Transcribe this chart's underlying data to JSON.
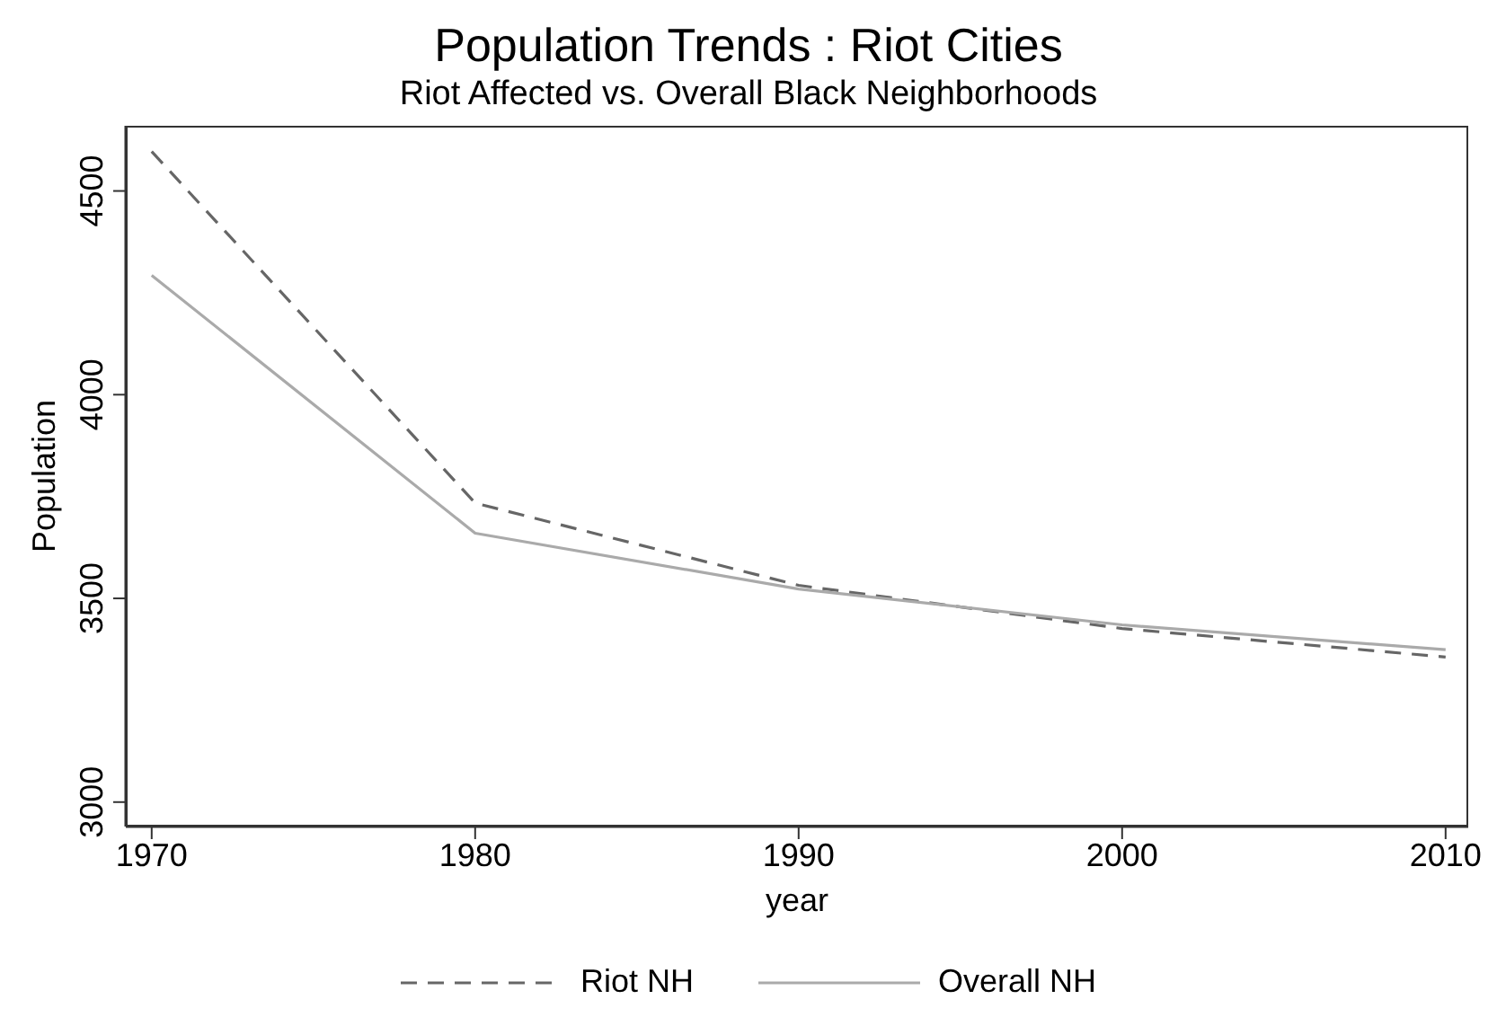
{
  "chart_data": {
    "type": "line",
    "title": "Population Trends : Riot Cities",
    "subtitle": "Riot Affected vs. Overall Black Neighborhoods",
    "xlabel": "year",
    "ylabel": "Population",
    "x": [
      1970,
      1980,
      1990,
      2000,
      2010
    ],
    "series": [
      {
        "name": "Riot NH",
        "color": "#666666",
        "line_style": "dashed",
        "values": [
          4597,
          3734,
          3532,
          3426,
          3356
        ]
      },
      {
        "name": "Overall NH",
        "color": "#aaaaaa",
        "line_style": "solid",
        "values": [
          4293,
          3660,
          3523,
          3435,
          3374
        ]
      }
    ],
    "xlim": [
      1969.2,
      2010.7
    ],
    "xticks": [
      1970,
      1980,
      1990,
      2000,
      2010
    ],
    "ylim": [
      2940,
      4660
    ],
    "yticks": [
      3000,
      3500,
      4000,
      4500
    ],
    "grid": false,
    "legend": "bottom",
    "marker": "none"
  }
}
